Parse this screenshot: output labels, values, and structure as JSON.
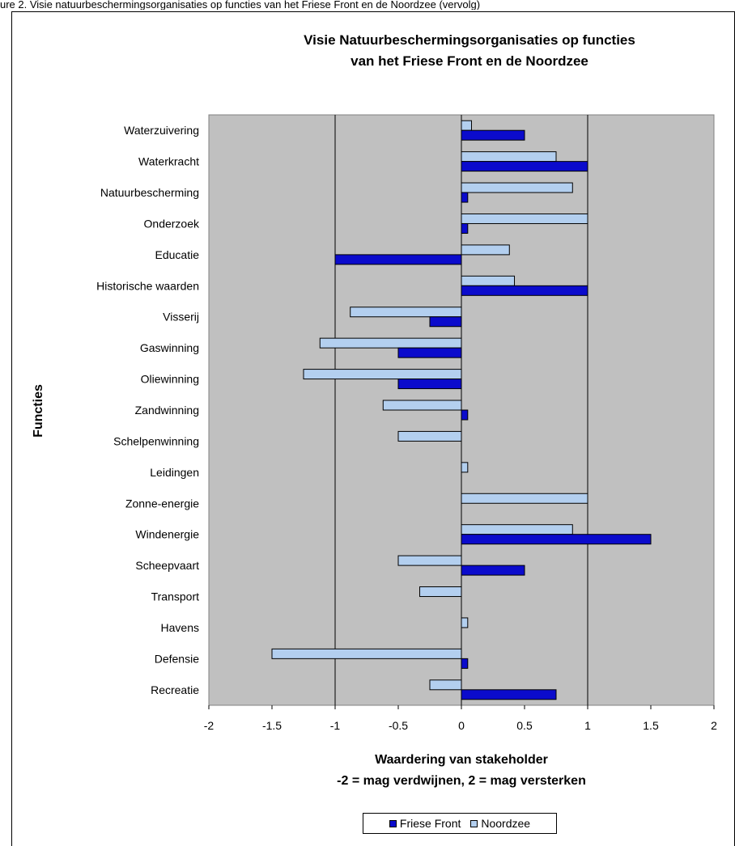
{
  "caption": "ure 2. Visie natuurbeschermingsorganisaties op functies van het Friese Front en de Noordzee (vervolg)",
  "colors": {
    "friese_front": "#0b0bcc",
    "noordzee": "#b3cfef",
    "plot_bg": "#c0c0c0",
    "gridline": "#000000"
  },
  "chart_data": {
    "type": "bar",
    "orientation": "horizontal",
    "title": "Visie Natuurbeschermingsorganisaties op functies",
    "subtitle": "van het Friese Front en de Noordzee",
    "xlabel": "Waardering van stakeholder",
    "xlabel2": "-2 = mag verdwijnen, 2 = mag versterken",
    "ylabel": "Functies",
    "xlim": [
      -2,
      2
    ],
    "xticks": [
      "-2",
      "-1.5",
      "-1",
      "-0.5",
      "0",
      "0.5",
      "1",
      "1.5",
      "2"
    ],
    "grid": true,
    "legend_position": "bottom",
    "categories": [
      "Waterzuivering",
      "Waterkracht",
      "Natuurbescherming",
      "Onderzoek",
      "Educatie",
      "Historische waarden",
      "Visserij",
      "Gaswinning",
      "Oliewinning",
      "Zandwinning",
      "Schelpenwinning",
      "Leidingen",
      "Zonne-energie",
      "Windenergie",
      "Scheepvaart",
      "Transport",
      "Havens",
      "Defensie",
      "Recreatie"
    ],
    "series": [
      {
        "name": "Friese Front",
        "values": [
          0.5,
          1,
          0.05,
          0.05,
          -1,
          1,
          -0.25,
          -0.5,
          -0.5,
          0.05,
          0,
          0,
          0,
          1.5,
          0.5,
          0,
          0,
          0.05,
          0.75
        ]
      },
      {
        "name": "Noordzee",
        "values": [
          0.08,
          0.75,
          0.88,
          1,
          0.38,
          0.42,
          -0.88,
          -1.12,
          -1.25,
          -0.62,
          -0.5,
          0.05,
          1,
          0.88,
          -0.5,
          -0.33,
          0.05,
          -1.5,
          -0.25
        ]
      }
    ]
  }
}
